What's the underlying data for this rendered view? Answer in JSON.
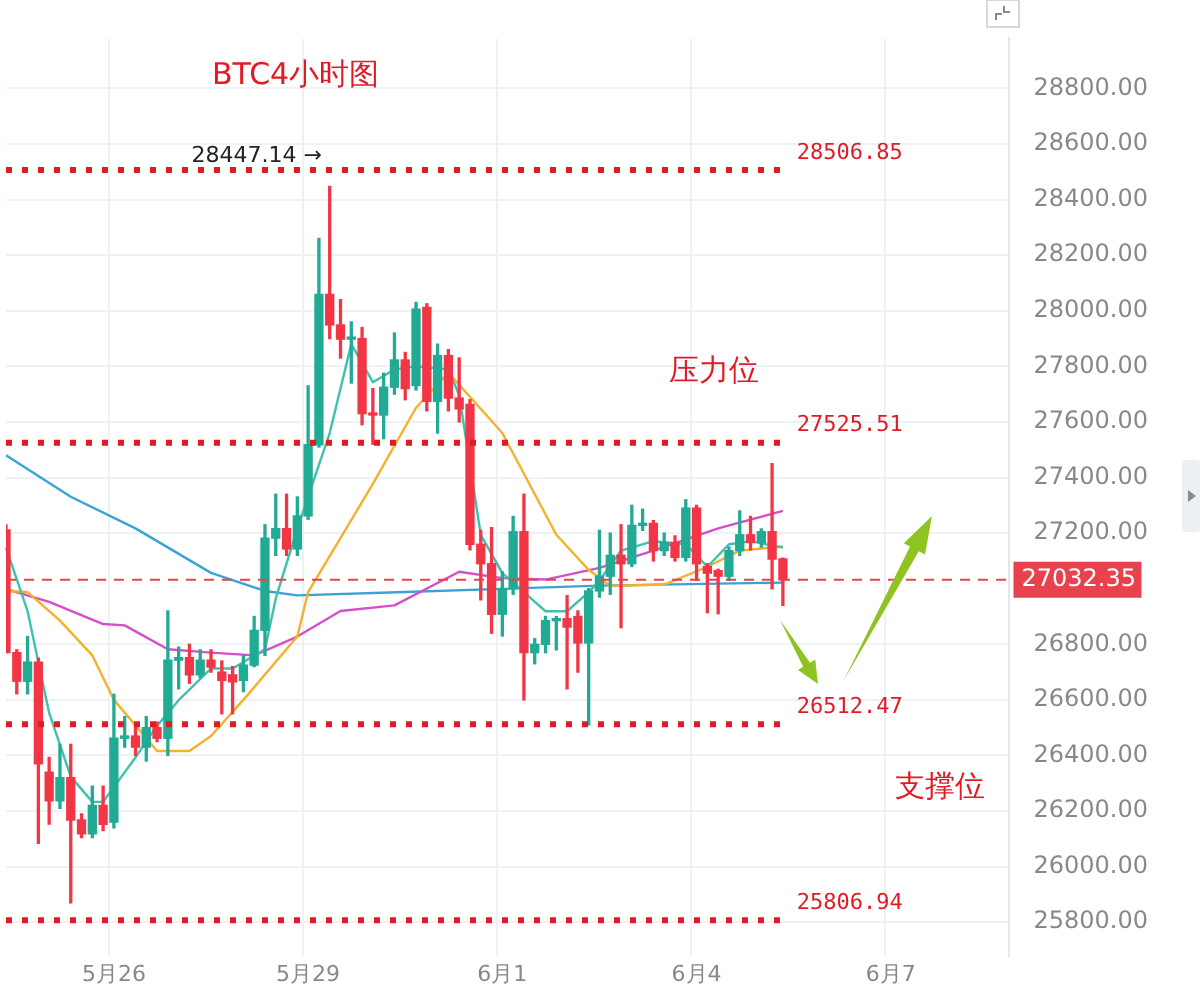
{
  "chart_data": {
    "type": "candlestick",
    "title": "BTC4小时图",
    "categories": [
      null,
      null,
      null,
      null,
      null,
      null,
      null,
      null,
      null,
      null,
      "5月26",
      null,
      null,
      null,
      null,
      null,
      null,
      null,
      null,
      null,
      null,
      null,
      null,
      null,
      null,
      null,
      null,
      null,
      "5月29",
      null,
      null,
      null,
      null,
      null,
      null,
      null,
      null,
      null,
      null,
      null,
      null,
      null,
      null,
      null,
      null,
      null,
      "6月1",
      null,
      null,
      null,
      null,
      null,
      null,
      null,
      null,
      null,
      null,
      null,
      null,
      null,
      null,
      null,
      null,
      null,
      "6月4",
      null,
      null,
      null,
      null,
      null,
      null,
      null,
      null,
      null,
      null,
      null,
      null,
      null,
      null,
      null,
      null,
      null,
      "6月7",
      null,
      null,
      null,
      null,
      null,
      null,
      null,
      null,
      null,
      null,
      null
    ],
    "ohlc": [
      [
        27212,
        27230,
        26770,
        26770
      ],
      [
        26770,
        26780,
        26622,
        26667
      ],
      [
        26667,
        26828,
        26622,
        26736
      ],
      [
        26736,
        26750,
        26084,
        26370
      ],
      [
        26340,
        26393,
        26153,
        26237
      ],
      [
        26237,
        26440,
        26210,
        26320
      ],
      [
        26320,
        26440,
        25870,
        26168
      ],
      [
        26168,
        26190,
        26105,
        26118
      ],
      [
        26118,
        26290,
        26105,
        26220
      ],
      [
        26220,
        26290,
        26130,
        26152
      ],
      [
        26160,
        26620,
        26140,
        26462
      ],
      [
        26462,
        26540,
        26430,
        26470
      ],
      [
        26470,
        26510,
        26400,
        26430
      ],
      [
        26430,
        26540,
        26380,
        26500
      ],
      [
        26500,
        26520,
        26450,
        26462
      ],
      [
        26462,
        26920,
        26400,
        26743
      ],
      [
        26743,
        26790,
        26640,
        26752
      ],
      [
        26752,
        26800,
        26660,
        26690
      ],
      [
        26690,
        26780,
        26680,
        26743
      ],
      [
        26743,
        26780,
        26700,
        26718
      ],
      [
        26700,
        26740,
        26550,
        26670
      ],
      [
        26690,
        26720,
        26550,
        26665
      ],
      [
        26670,
        26760,
        26630,
        26725
      ],
      [
        26725,
        26900,
        26720,
        26850
      ],
      [
        26850,
        27230,
        26760,
        27182
      ],
      [
        27182,
        27340,
        27120,
        27216
      ],
      [
        27216,
        27340,
        27120,
        27143
      ],
      [
        27143,
        27330,
        27120,
        27262
      ],
      [
        27262,
        27730,
        27250,
        27518
      ],
      [
        27518,
        28260,
        27510,
        28059
      ],
      [
        28059,
        28447.14,
        27900,
        27949
      ],
      [
        27949,
        28040,
        27830,
        27898
      ],
      [
        27898,
        27960,
        27740,
        27900
      ],
      [
        27900,
        27940,
        27590,
        27630
      ],
      [
        27630,
        27720,
        27520,
        27625
      ],
      [
        27625,
        27775,
        27540,
        27725
      ],
      [
        27725,
        27920,
        27700,
        27823
      ],
      [
        27823,
        27850,
        27680,
        27720
      ],
      [
        27731,
        28030,
        27715,
        28006
      ],
      [
        28012,
        28025,
        27640,
        27674
      ],
      [
        27674,
        27880,
        27560,
        27839
      ],
      [
        27839,
        27860,
        27640,
        27686
      ],
      [
        27686,
        27830,
        27600,
        27647
      ],
      [
        27663,
        27680,
        27140,
        27160
      ],
      [
        27160,
        27210,
        26960,
        27090
      ],
      [
        27090,
        27220,
        26840,
        26908
      ],
      [
        26908,
        27060,
        26830,
        27000
      ],
      [
        27000,
        27260,
        26980,
        27205
      ],
      [
        27205,
        27340,
        26600,
        26770
      ],
      [
        26770,
        26820,
        26730,
        26800
      ],
      [
        26800,
        26900,
        26770,
        26885
      ],
      [
        26885,
        26900,
        26780,
        26892
      ],
      [
        26892,
        26975,
        26640,
        26862
      ],
      [
        26900,
        26920,
        26700,
        26805
      ],
      [
        26805,
        27000,
        26510,
        26992
      ],
      [
        26992,
        27210,
        26970,
        27045
      ],
      [
        27045,
        27200,
        26980,
        27120
      ],
      [
        27120,
        27230,
        26860,
        27090
      ],
      [
        27090,
        27300,
        27080,
        27228
      ],
      [
        27228,
        27286,
        27210,
        27235
      ],
      [
        27235,
        27245,
        27100,
        27137
      ],
      [
        27137,
        27200,
        27120,
        27166
      ],
      [
        27166,
        27190,
        27100,
        27113
      ],
      [
        27113,
        27320,
        27100,
        27290
      ],
      [
        27290,
        27300,
        27030,
        27090
      ],
      [
        27080,
        27090,
        26914,
        27056
      ],
      [
        27065,
        27070,
        26910,
        27045
      ],
      [
        27045,
        27150,
        27030,
        27137
      ],
      [
        27137,
        27280,
        27120,
        27194
      ],
      [
        27194,
        27260,
        27140,
        27166
      ],
      [
        27166,
        27215,
        27150,
        27205
      ],
      [
        27205,
        27450,
        27000,
        27107
      ],
      [
        27107,
        27110,
        26940,
        27032.35
      ],
      null,
      null,
      null,
      null,
      null,
      null,
      null,
      null,
      null,
      null,
      null,
      null,
      null,
      null,
      null,
      null,
      null,
      null,
      null,
      null,
      null
    ],
    "colors": [
      "#f23645",
      "#f23645",
      "#22ab94",
      "#f23645",
      "#f23645",
      "#22ab94",
      "#f23645",
      "#f23645",
      "#22ab94",
      "#f23645",
      "#22ab94",
      "#22ab94",
      "#f23645",
      "#22ab94",
      "#f23645",
      "#22ab94",
      "#22ab94",
      "#f23645",
      "#22ab94",
      "#f23645",
      "#f23645",
      "#f23645",
      "#22ab94",
      "#22ab94",
      "#22ab94",
      "#22ab94",
      "#f23645",
      "#22ab94",
      "#22ab94",
      "#22ab94",
      "#f23645",
      "#f23645",
      "#22ab94",
      "#f23645",
      "#f23645",
      "#22ab94",
      "#22ab94",
      "#f23645",
      "#22ab94",
      "#f23645",
      "#22ab94",
      "#f23645",
      "#f23645",
      "#f23645",
      "#f23645",
      "#f23645",
      "#22ab94",
      "#22ab94",
      "#f23645",
      "#22ab94",
      "#22ab94",
      "#22ab94",
      "#f23645",
      "#f23645",
      "#22ab94",
      "#22ab94",
      "#22ab94",
      "#f23645",
      "#22ab94",
      "#22ab94",
      "#f23645",
      "#22ab94",
      "#f23645",
      "#22ab94",
      "#f23645",
      "#f23645",
      "#f23645",
      "#22ab94",
      "#22ab94",
      "#f23645",
      "#22ab94",
      "#f23645",
      "#f23645",
      null,
      null,
      null,
      null,
      null,
      null,
      null,
      null,
      null,
      null,
      null,
      null,
      null,
      null,
      null,
      null,
      null,
      null,
      null,
      null,
      null
    ],
    "series": [
      {
        "type": "line",
        "color": "#3fc1b0",
        "values": [
          27148,
          null,
          26919,
          null,
          26553,
          null,
          26324,
          null,
          26233,
          26233,
          null,
          null,
          26393,
          null,
          26507,
          null,
          26599,
          null,
          null,
          26713,
          null,
          26713,
          null,
          null,
          26782,
          26965,
          null,
          27216,
          null,
          null,
          27560,
          null,
          27880,
          null,
          27743,
          null,
          27789,
          null,
          27800,
          null,
          null,
          27789,
          27697,
          null,
          27194,
          null,
          27056,
          null,
          26988,
          null,
          26919,
          null,
          26919,
          null,
          26988,
          27029,
          null,
          27137,
          null,
          null,
          27171,
          null,
          null,
          27160,
          null,
          27079,
          null,
          27160,
          null,
          27171,
          null,
          null,
          27148,
          null,
          null,
          null,
          null,
          null,
          null,
          null,
          null,
          null,
          null,
          null,
          null,
          null,
          null,
          null,
          null,
          null,
          null,
          null,
          null,
          null
        ]
      },
      {
        "type": "line",
        "color": "#f5b02e",
        "values": [
          26992,
          null,
          26988,
          null,
          null,
          26885,
          null,
          null,
          26760,
          null,
          26600,
          null,
          null,
          null,
          26416,
          null,
          null,
          26416,
          null,
          26470,
          null,
          null,
          26600,
          null,
          null,
          null,
          null,
          26828,
          26988,
          null,
          null,
          null,
          null,
          null,
          27377,
          null,
          null,
          null,
          27651,
          null,
          null,
          27777,
          null,
          null,
          null,
          null,
          27560,
          null,
          null,
          null,
          null,
          27194,
          null,
          null,
          27068,
          null,
          27010,
          null,
          null,
          null,
          null,
          27015,
          null,
          null,
          null,
          27079,
          null,
          null,
          27137,
          null,
          null,
          null,
          27152,
          null,
          null,
          null,
          null,
          null,
          null,
          null,
          null,
          null,
          null,
          null,
          null,
          null,
          null,
          null,
          null,
          null,
          null,
          null,
          null,
          null
        ]
      },
      {
        "type": "line",
        "color": "#d64fc9",
        "values": [
          26999,
          null,
          null,
          null,
          26953,
          null,
          null,
          null,
          null,
          26873,
          null,
          26868,
          null,
          null,
          null,
          26782,
          null,
          null,
          null,
          26770,
          null,
          null,
          null,
          26760,
          null,
          null,
          null,
          26828,
          null,
          null,
          null,
          26920,
          null,
          null,
          null,
          null,
          26940,
          null,
          null,
          null,
          null,
          null,
          27061,
          null,
          null,
          null,
          27038,
          null,
          null,
          null,
          27033,
          null,
          null,
          null,
          null,
          27075,
          null,
          null,
          null,
          null,
          27137,
          null,
          null,
          null,
          null,
          null,
          27217,
          null,
          null,
          null,
          null,
          null,
          27280,
          null,
          null,
          null,
          null,
          null,
          null,
          null,
          null,
          null,
          null,
          null,
          null,
          null,
          null,
          null,
          null,
          null,
          null,
          null,
          null,
          null
        ]
      },
      {
        "type": "line",
        "color": "#3aa3d6",
        "values": [
          27480,
          null,
          null,
          null,
          null,
          null,
          27331,
          null,
          null,
          null,
          null,
          null,
          27217,
          null,
          null,
          null,
          null,
          null,
          null,
          27057,
          null,
          null,
          null,
          null,
          26992,
          null,
          null,
          26976,
          null,
          null,
          null,
          null,
          null,
          null,
          null,
          null,
          null,
          26988,
          null,
          null,
          null,
          null,
          null,
          null,
          null,
          null,
          null,
          null,
          null,
          null,
          null,
          null,
          null,
          null,
          null,
          27011,
          null,
          null,
          null,
          null,
          null,
          null,
          null,
          null,
          null,
          null,
          null,
          null,
          null,
          null,
          null,
          null,
          27022,
          null,
          null,
          null,
          null,
          null,
          null,
          null,
          null,
          null,
          null,
          null,
          null,
          null,
          null,
          null,
          null,
          null,
          null,
          null,
          null,
          null
        ]
      }
    ],
    "ylim": [
      25680,
      28980
    ],
    "yticks": [
      {
        "value": 25800,
        "label": "25800.00"
      },
      {
        "value": 26000,
        "label": "26000.00"
      },
      {
        "value": 26200,
        "label": "26200.00"
      },
      {
        "value": 26400,
        "label": "26400.00"
      },
      {
        "value": 26600,
        "label": "26600.00"
      },
      {
        "value": 26800,
        "label": "26800.00"
      },
      {
        "value": 27200,
        "label": "27200.00"
      },
      {
        "value": 27400,
        "label": "27400.00"
      },
      {
        "value": 27600,
        "label": "27600.00"
      },
      {
        "value": 27800,
        "label": "27800.00"
      },
      {
        "value": 28000,
        "label": "28000.00"
      },
      {
        "value": 28200,
        "label": "28200.00"
      },
      {
        "value": 28400,
        "label": "28400.00"
      },
      {
        "value": 28600,
        "label": "28600.00"
      },
      {
        "value": 28800,
        "label": "28800.00"
      }
    ],
    "ref_lines": [
      {
        "axis": "y",
        "value": 28506.85,
        "label": "28506.85",
        "color": "#e01b24",
        "line_style": "dotted"
      },
      {
        "axis": "y",
        "value": 27525.51,
        "label": "27525.51",
        "color": "#e01b24",
        "line_style": "dotted"
      },
      {
        "axis": "y",
        "value": 26512.47,
        "label": "26512.47",
        "color": "#e01b24",
        "line_style": "dotted"
      },
      {
        "axis": "y",
        "value": 25806.94,
        "label": "25806.94",
        "color": "#e01b24",
        "line_style": "dotted"
      },
      {
        "axis": "y",
        "value": 27032.35,
        "label": "27032.35",
        "color": "#e8424e",
        "line_style": "dashed"
      }
    ],
    "annotations": [
      "压力位",
      "支撑位",
      "28447.14 →"
    ],
    "grid": true,
    "legend": false
  }
}
